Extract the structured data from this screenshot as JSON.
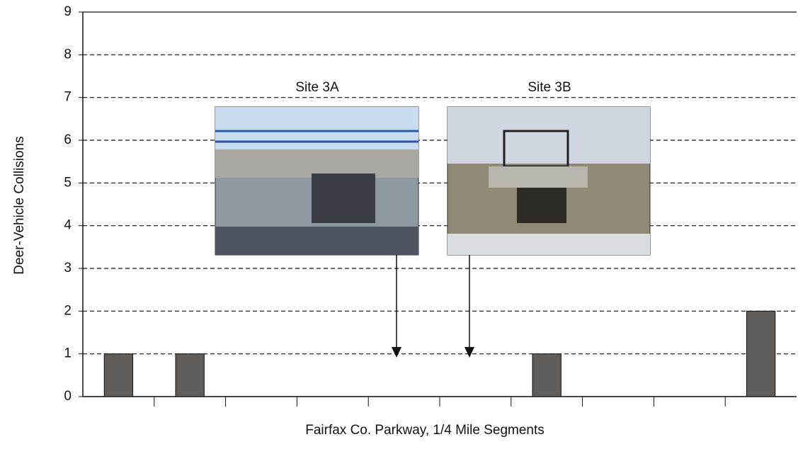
{
  "chart_data": {
    "type": "bar",
    "y_label": "Deer-Vehicle Collisions",
    "x_label": "Fairfax Co. Parkway, 1/4 Mile Segments",
    "annotations": [
      "Site 3A",
      "Site 3B"
    ],
    "categories": [
      null,
      null,
      null,
      null,
      null,
      null,
      null,
      null,
      null,
      null
    ],
    "values": [
      1,
      1,
      0,
      0,
      0,
      0,
      1,
      0,
      0,
      2
    ],
    "color": "#615d5b",
    "ylim": [
      0,
      9
    ],
    "yticks": [
      0,
      1,
      2,
      3,
      4,
      5,
      6,
      7,
      8,
      9
    ],
    "grid": true
  }
}
